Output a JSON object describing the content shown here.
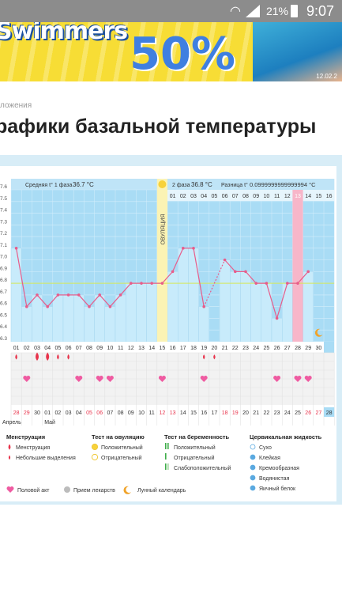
{
  "status_bar": {
    "battery_percent": "21%",
    "time": "9:07",
    "wifi_icon": "wifi-icon",
    "signal_icon": "signal-icon",
    "battery_icon": "battery-charging-icon"
  },
  "banner": {
    "brand": "Swimmers",
    "discount": "50%",
    "date": "12.02.2"
  },
  "breadcrumb": "ложения",
  "page_title": "рафики базальной температуры",
  "chart_data": {
    "type": "line",
    "ylim": [
      36.3,
      37.6
    ],
    "yticks": [
      "7.6",
      "7.5",
      "7.4",
      "7.3",
      "7.2",
      "7.1",
      "7.0",
      "6.9",
      "6.8",
      "6.7",
      "6.6",
      "6.5",
      "6.4",
      "6.3"
    ],
    "top_days": [
      "01",
      "02",
      "03",
      "04",
      "05",
      "06",
      "07",
      "08",
      "09",
      "10",
      "11",
      "12",
      "13",
      "14",
      "15",
      "16"
    ],
    "x_labels": [
      "01",
      "02",
      "03",
      "04",
      "05",
      "06",
      "07",
      "08",
      "09",
      "10",
      "11",
      "12",
      "13",
      "14",
      "15",
      "16",
      "17",
      "18",
      "19",
      "20",
      "21",
      "22",
      "23",
      "24",
      "25",
      "26",
      "27",
      "28",
      "29",
      "30",
      "31"
    ],
    "values": [
      37.1,
      36.6,
      36.7,
      36.6,
      36.7,
      36.7,
      36.7,
      36.6,
      36.7,
      36.6,
      36.7,
      36.8,
      36.8,
      36.8,
      36.8,
      36.9,
      37.1,
      37.1,
      36.6,
      null,
      37.0,
      36.9,
      36.9,
      36.8,
      36.8,
      36.5,
      36.8,
      36.8,
      36.9
    ],
    "dashed_segment": [
      19,
      21
    ],
    "cover_line": 36.8,
    "ovulation_day_index": 14,
    "ovulation_label": "ОВУЛЯЦИЯ",
    "phase1_text": "Средняя t° 1 фаза",
    "phase1_value": "36.7 °C",
    "phase2_text": "2 фаза",
    "phase2_value": "36.8 °C",
    "diff_text": "Разница t°",
    "diff_value": "0.0999999999999994 °C",
    "pink_day_index": 27,
    "menstruation_days": [
      0,
      2,
      3,
      4,
      5
    ],
    "spotting_days": [
      18,
      19
    ],
    "intercourse_days": [
      1,
      6,
      8,
      9,
      14,
      18,
      25,
      27,
      28
    ],
    "moon_day_index": 29,
    "cycle_days": [
      {
        "label": "28",
        "red": true
      },
      {
        "label": "29",
        "red": true
      },
      {
        "label": "30",
        "red": false
      },
      {
        "label": "01",
        "red": false
      },
      {
        "label": "02",
        "red": false
      },
      {
        "label": "03",
        "red": false
      },
      {
        "label": "04",
        "red": false
      },
      {
        "label": "05",
        "red": true
      },
      {
        "label": "06",
        "red": true
      },
      {
        "label": "07",
        "red": false
      },
      {
        "label": "08",
        "red": false
      },
      {
        "label": "09",
        "red": false
      },
      {
        "label": "10",
        "red": false
      },
      {
        "label": "11",
        "red": false
      },
      {
        "label": "12",
        "red": true
      },
      {
        "label": "13",
        "red": true
      },
      {
        "label": "14",
        "red": false
      },
      {
        "label": "15",
        "red": false
      },
      {
        "label": "16",
        "red": false
      },
      {
        "label": "17",
        "red": false
      },
      {
        "label": "18",
        "red": true
      },
      {
        "label": "19",
        "red": true
      },
      {
        "label": "20",
        "red": false
      },
      {
        "label": "21",
        "red": false
      },
      {
        "label": "22",
        "red": false
      },
      {
        "label": "23",
        "red": false
      },
      {
        "label": "24",
        "red": false
      },
      {
        "label": "25",
        "red": false
      },
      {
        "label": "26",
        "red": true
      },
      {
        "label": "27",
        "red": true
      },
      {
        "label": "28",
        "red": false
      }
    ],
    "month_labels": [
      "Апрель",
      "Май"
    ]
  },
  "legend": {
    "menstruation": {
      "title": "Менструация",
      "items": [
        "Менструация",
        "Небольшие выделения"
      ]
    },
    "ovulation_test": {
      "title": "Тест на овуляцию",
      "items": [
        "Положительный",
        "Отрицательный"
      ]
    },
    "pregnancy_test": {
      "title": "Тест на беременность",
      "items": [
        "Положительный",
        "Отрицательный",
        "Слабоположительный"
      ]
    },
    "cervical": {
      "title": "Цервикальная жидкость",
      "items": [
        "Сухо",
        "Клейкая",
        "Кремообразная",
        "Водянистая",
        "Яичный белок"
      ]
    },
    "bottom": [
      "Половой акт",
      "Прием лекарств",
      "Лунный календарь"
    ]
  },
  "colors": {
    "plot_blue": "#a9dcf5",
    "bar_blue": "#c8ebfb",
    "line_pink": "#e85c8a",
    "ovulation_yellow": "#fbf3b4",
    "accent_red": "#e8344c",
    "header_blue": "#bfe4f7"
  }
}
